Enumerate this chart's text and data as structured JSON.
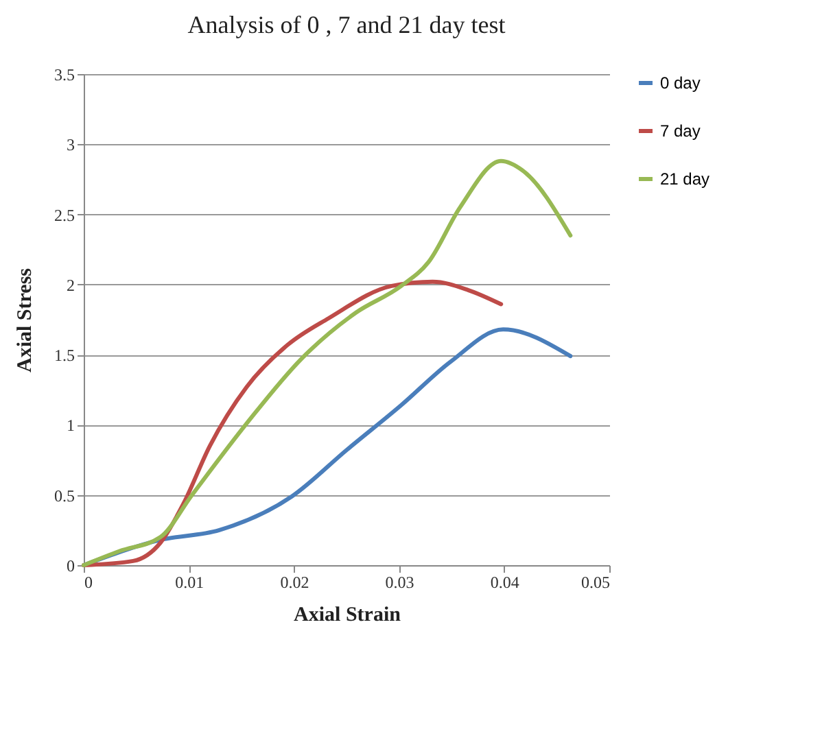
{
  "chart_data": {
    "type": "line",
    "title": "Analysis of 0 , 7 and 21 day test",
    "xlabel": "Axial Strain",
    "ylabel": "Axial Stress",
    "xlim": [
      0,
      0.05
    ],
    "xticks": [
      0,
      0.01,
      0.02,
      0.03,
      0.04,
      0.05
    ],
    "ylim": [
      0,
      3.5
    ],
    "yticks": [
      0,
      0.5,
      1,
      1.5,
      2,
      2.5,
      3,
      3.5
    ],
    "grid": "y",
    "legend": "right",
    "series": [
      {
        "name": "0 day",
        "color": "#4a7ebb",
        "x": [
          0,
          0.0073,
          0.0129,
          0.0198,
          0.025,
          0.0302,
          0.0349,
          0.0399,
          0.0463
        ],
        "values": [
          0,
          0.18,
          0.25,
          0.49,
          0.82,
          1.14,
          1.45,
          1.68,
          1.49
        ]
      },
      {
        "name": "7 day",
        "color": "#be4b48",
        "x": [
          0,
          0.0047,
          0.0073,
          0.0095,
          0.012,
          0.0155,
          0.0194,
          0.0233,
          0.0293,
          0.0332,
          0.0366,
          0.0397
        ],
        "values": [
          0,
          0.03,
          0.16,
          0.44,
          0.85,
          1.27,
          1.57,
          1.76,
          1.99,
          2.02,
          1.96,
          1.86
        ]
      },
      {
        "name": "21 day",
        "color": "#98b954",
        "x": [
          0,
          0.0034,
          0.0073,
          0.0103,
          0.0155,
          0.0207,
          0.0259,
          0.0302,
          0.0328,
          0.0358,
          0.0397,
          0.0418,
          0.0463
        ],
        "values": [
          0,
          0.1,
          0.2,
          0.5,
          1.01,
          1.47,
          1.8,
          1.99,
          2.16,
          2.55,
          2.88,
          2.81,
          2.35
        ]
      }
    ]
  }
}
